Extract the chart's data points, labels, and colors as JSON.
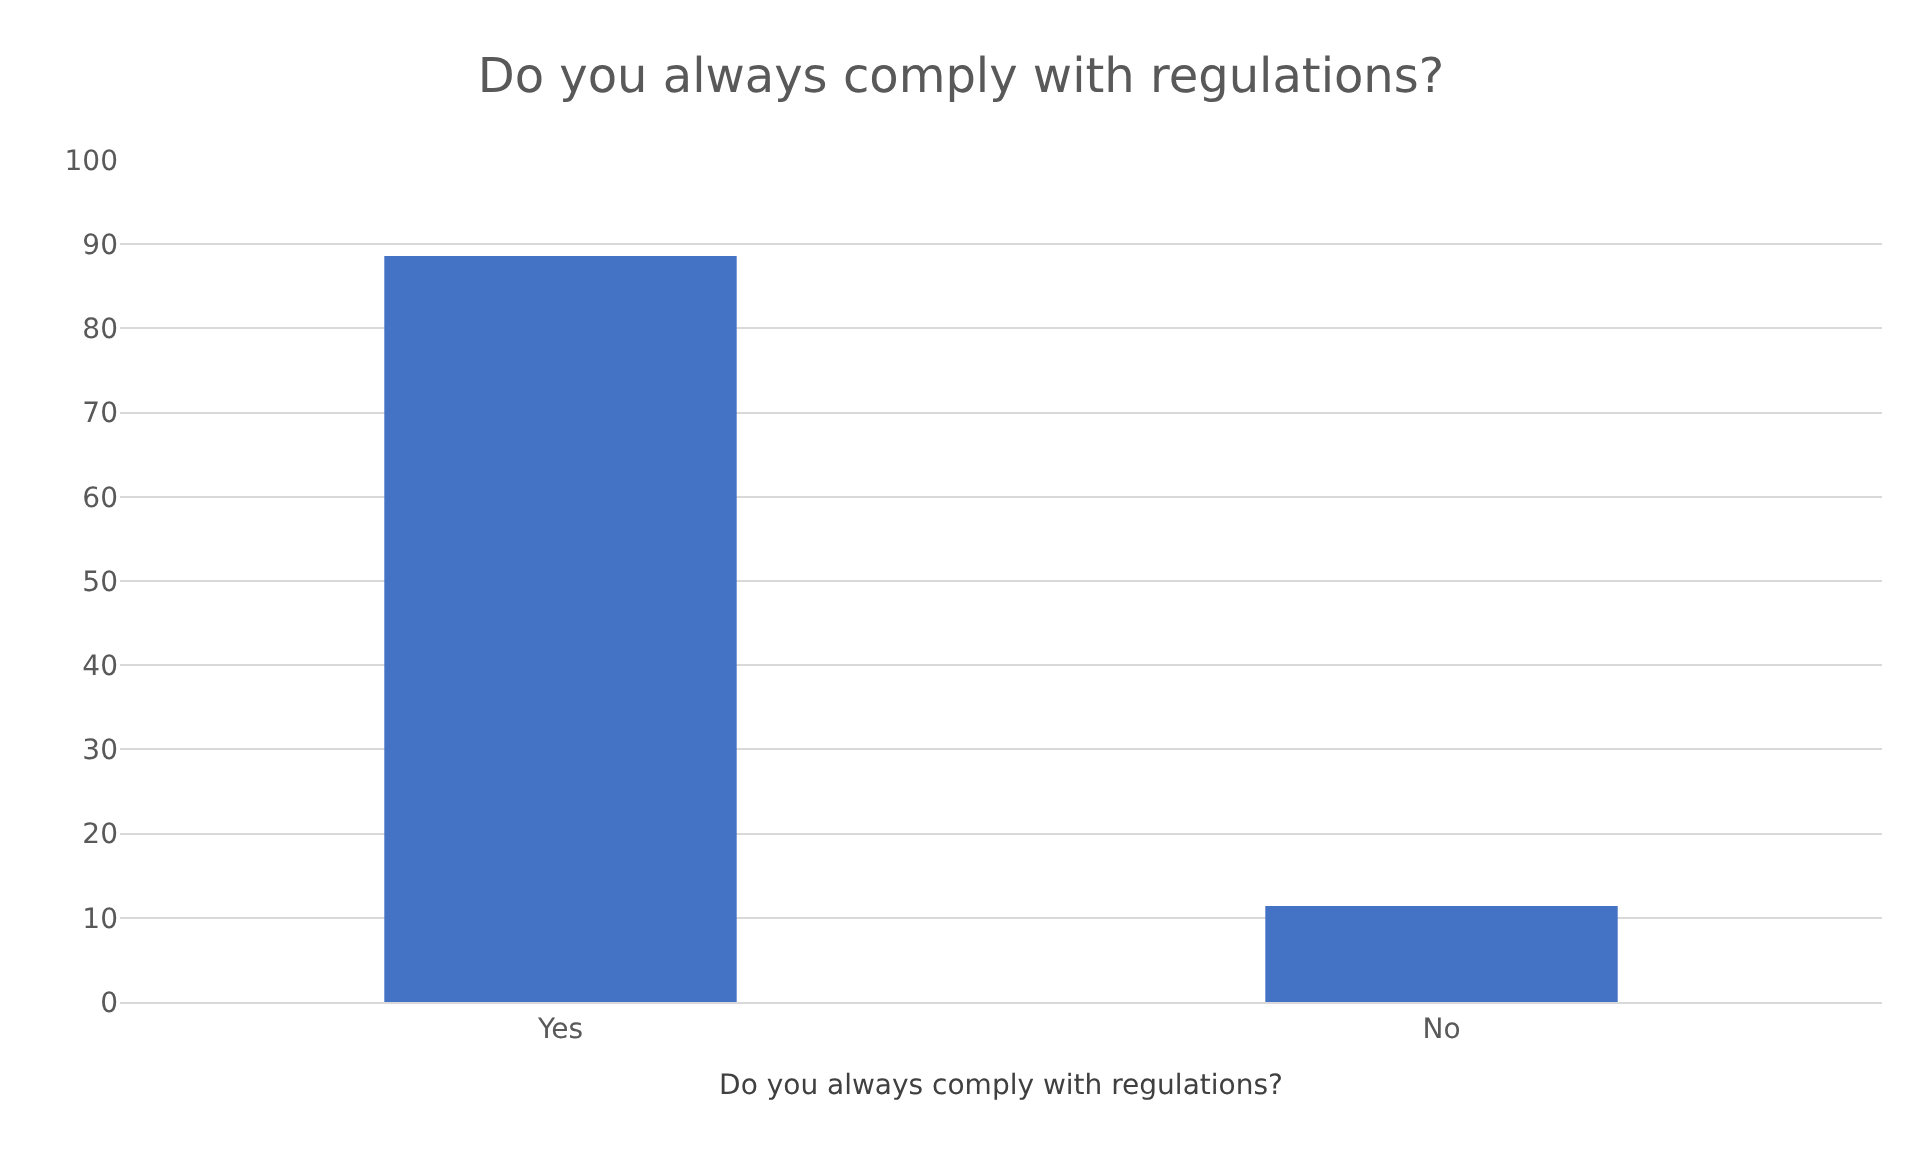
{
  "chart_data": {
    "type": "bar",
    "title": "Do you always comply with regulations?",
    "xlabel": "Do you always comply with regulations?",
    "categories": [
      "Yes",
      "No"
    ],
    "values": [
      88.6,
      11.4
    ],
    "color": "#4472c4",
    "ylim": [
      0,
      100
    ],
    "yticks": [
      0,
      10,
      20,
      30,
      40,
      50,
      60,
      70,
      80,
      90,
      100
    ],
    "grid": "y"
  }
}
